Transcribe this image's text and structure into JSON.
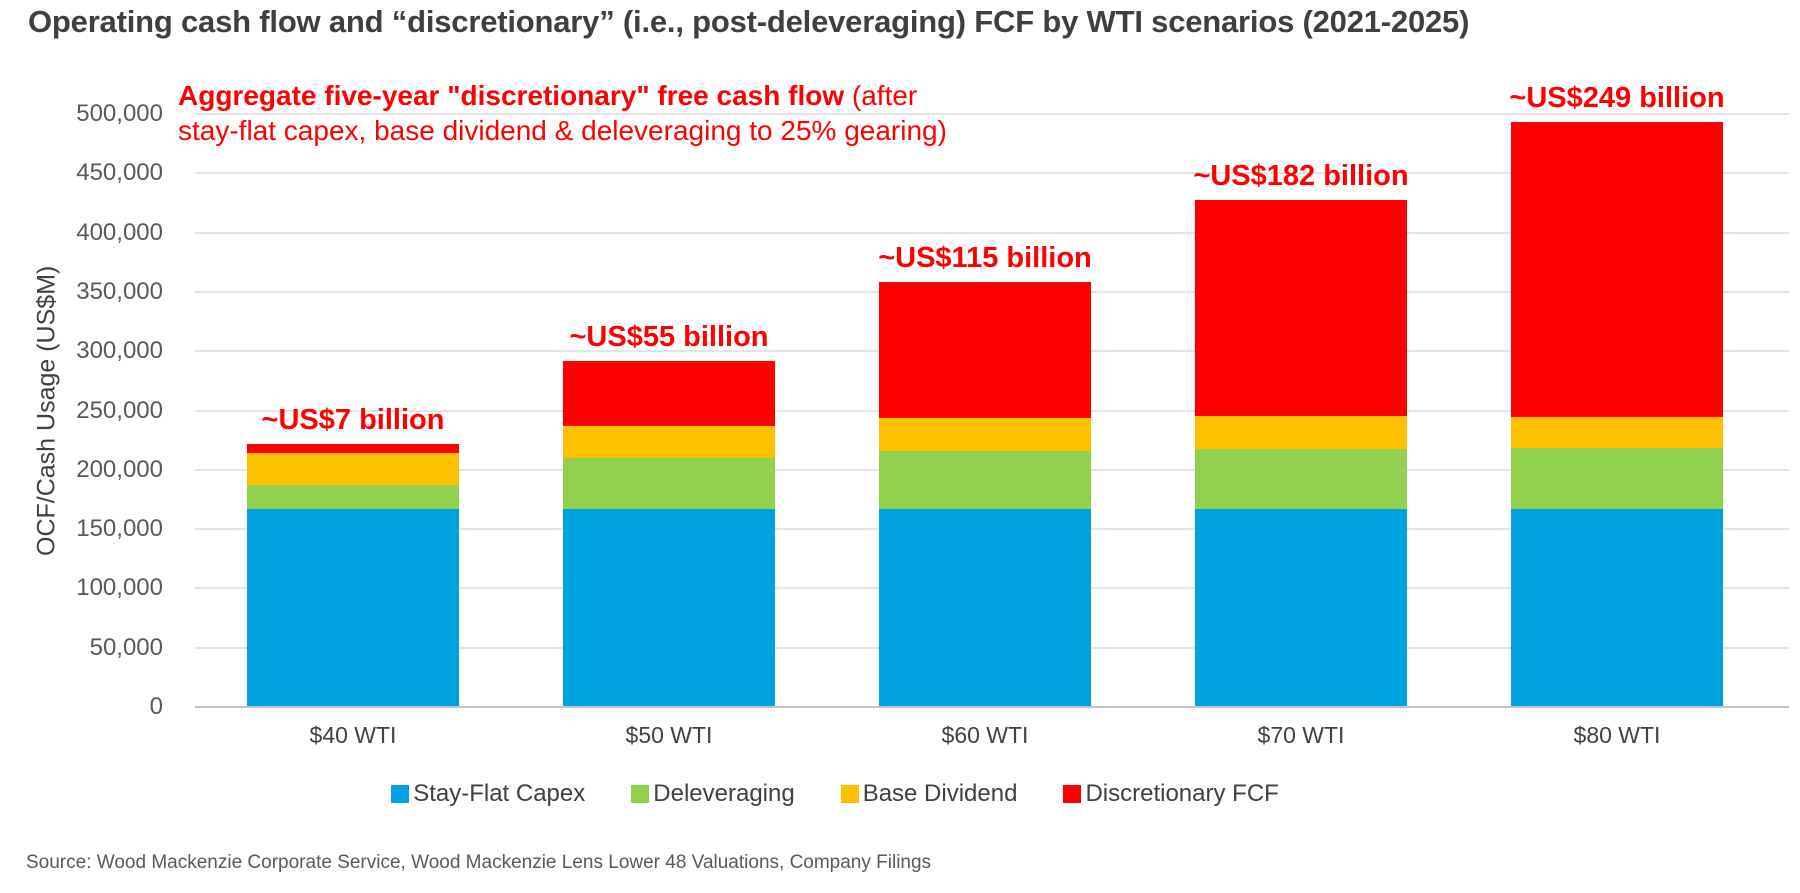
{
  "title": "Operating cash flow and “discretionary” (i.e., post-deleveraging) FCF by WTI scenarios (2021-2025)",
  "annotation": {
    "bold_text": "Aggregate five-year \"discretionary\" free cash flow",
    "regular_suffix": " (after",
    "line2": "stay-flat capex, base dividend & deleveraging to 25% gearing)"
  },
  "source": "Source: Wood Mackenzie Corporate Service, Wood Mackenzie Lens Lower 48 Valuations, Company Filings",
  "colors": {
    "stay_flat_capex": "#00A3E0",
    "deleveraging": "#92D050",
    "base_dividend": "#FFC000",
    "discretionary_fcf": "#FF0000",
    "annotation_red": "#FF0000",
    "title_gray": "#3F3F3F",
    "axis_text_gray": "#595959",
    "gridline_gray": "#E4E4E4"
  },
  "chart_data": {
    "type": "bar",
    "stacked": true,
    "categories": [
      "$40 WTI",
      "$50 WTI",
      "$60 WTI",
      "$70 WTI",
      "$80 WTI"
    ],
    "series": [
      {
        "name": "Stay-Flat Capex",
        "color": "#00A3E0",
        "values": [
          167000,
          167000,
          167000,
          167000,
          167000
        ]
      },
      {
        "name": "Deleveraging",
        "color": "#92D050",
        "values": [
          20000,
          43000,
          49000,
          50500,
          51000
        ]
      },
      {
        "name": "Base Dividend",
        "color": "#FFC000",
        "values": [
          27500,
          27000,
          27500,
          28000,
          26500
        ]
      },
      {
        "name": "Discretionary FCF",
        "color": "#FF0000",
        "values": [
          7500,
          55000,
          115000,
          182000,
          249000
        ]
      }
    ],
    "bar_totals": [
      222000,
      292000,
      358500,
      427500,
      493500
    ],
    "bar_total_labels": [
      "~US$7 billion",
      "~US$55 billion",
      "~US$115 billion",
      "~US$182 billion",
      "~US$249 billion"
    ],
    "xlabel": "",
    "ylabel": "OCF/Cash Usage (US$M)",
    "ylim": [
      0,
      500000
    ],
    "ytick_step": 50000,
    "grid": true,
    "legend_position": "bottom"
  }
}
